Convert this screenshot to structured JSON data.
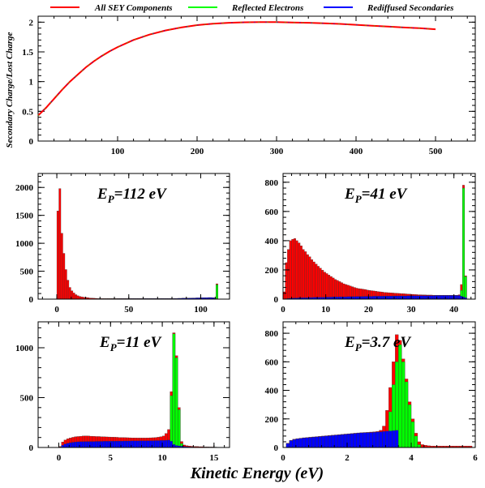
{
  "chart_data": [
    {
      "id": "top",
      "type": "line",
      "legend_position": "top",
      "xlim": [
        0,
        550
      ],
      "ylim": [
        0,
        2.1
      ],
      "x_ticks": [
        100,
        200,
        300,
        400,
        500
      ],
      "y_ticks": [
        0,
        0.5,
        1,
        1.5,
        2
      ],
      "x_tick_labels": [
        "100",
        "200",
        "300",
        "400",
        "500"
      ],
      "y_tick_labels": [
        "0",
        "0.5",
        "1",
        "1.5",
        "2"
      ],
      "ylabel": "Secondary Charge/Lost Charge",
      "series": [
        {
          "name": "All SEY Components",
          "color": "#ff0000"
        },
        {
          "name": "Reflected Electrons",
          "color": "#00ff00"
        },
        {
          "name": "Rediffused Secondaries",
          "color": "#0000ff"
        }
      ],
      "x": [
        0,
        10,
        20,
        30,
        40,
        50,
        60,
        70,
        80,
        90,
        100,
        120,
        140,
        160,
        180,
        200,
        220,
        240,
        260,
        280,
        300,
        320,
        340,
        360,
        380,
        400,
        420,
        440,
        460,
        480,
        500
      ],
      "values": [
        0.43,
        0.56,
        0.71,
        0.86,
        1.0,
        1.12,
        1.24,
        1.34,
        1.43,
        1.51,
        1.58,
        1.7,
        1.79,
        1.86,
        1.91,
        1.95,
        1.975,
        1.99,
        1.998,
        2.0,
        2.0,
        1.995,
        1.99,
        1.98,
        1.97,
        1.955,
        1.94,
        1.925,
        1.91,
        1.9,
        1.88
      ]
    },
    {
      "id": "p112",
      "type": "histogram",
      "annotation": {
        "prefix": "E",
        "sub": "P",
        "suffix": "=112 eV"
      },
      "xlim": [
        -13,
        120
      ],
      "ylim": [
        0,
        2250
      ],
      "x_ticks": [
        0,
        50,
        100
      ],
      "y_ticks": [
        0,
        500,
        1000,
        1500,
        2000
      ],
      "x_tick_labels": [
        "0",
        "50",
        "100"
      ],
      "y_tick_labels": [
        "0",
        "500",
        "1000",
        "1500",
        "2000"
      ],
      "bin_width": 1.4,
      "x_start": 0,
      "total": [
        1580,
        1980,
        1180,
        820,
        530,
        340,
        210,
        150,
        110,
        80,
        60,
        48,
        40,
        34,
        30,
        26,
        20,
        18,
        16,
        14,
        12,
        12,
        11,
        10,
        10,
        10,
        10,
        10,
        10,
        10,
        10,
        10,
        10,
        10,
        10,
        10,
        10,
        10,
        10,
        10,
        10,
        10,
        10,
        10,
        10,
        10,
        10,
        10,
        10,
        10,
        10,
        10,
        10,
        10,
        10,
        10,
        10,
        10,
        12,
        12,
        14,
        14,
        16,
        16,
        16,
        18,
        18,
        20,
        20,
        22,
        22,
        24,
        24,
        26,
        26,
        28,
        28,
        26,
        20,
        275
      ],
      "rediffused": [
        0,
        0,
        0,
        0,
        0,
        0,
        0,
        0,
        0,
        0,
        2,
        3,
        4,
        5,
        5,
        5,
        5,
        5,
        6,
        6,
        6,
        6,
        6,
        6,
        7,
        7,
        7,
        7,
        7,
        7,
        8,
        8,
        8,
        8,
        8,
        8,
        9,
        9,
        9,
        9,
        9,
        9,
        9,
        10,
        10,
        10,
        10,
        10,
        10,
        10,
        10,
        10,
        10,
        10,
        10,
        10,
        10,
        10,
        12,
        12,
        14,
        14,
        16,
        16,
        16,
        18,
        18,
        20,
        20,
        22,
        22,
        24,
        24,
        26,
        26,
        28,
        28,
        26,
        20,
        6
      ],
      "reflected": [
        0,
        0,
        0,
        0,
        0,
        0,
        0,
        0,
        0,
        0,
        0,
        0,
        0,
        0,
        0,
        0,
        0,
        0,
        0,
        0,
        0,
        0,
        0,
        0,
        0,
        0,
        0,
        0,
        0,
        0,
        0,
        0,
        0,
        0,
        0,
        0,
        0,
        0,
        0,
        0,
        0,
        0,
        0,
        0,
        0,
        0,
        0,
        0,
        0,
        0,
        0,
        0,
        0,
        0,
        0,
        0,
        0,
        0,
        0,
        0,
        0,
        0,
        0,
        0,
        0,
        0,
        0,
        0,
        0,
        0,
        0,
        0,
        0,
        0,
        0,
        0,
        0,
        0,
        0,
        260
      ]
    },
    {
      "id": "p41",
      "type": "histogram",
      "annotation": {
        "prefix": "E",
        "sub": "P",
        "suffix": "=41 eV"
      },
      "xlim": [
        0,
        45
      ],
      "ylim": [
        0,
        860
      ],
      "x_ticks": [
        0,
        10,
        20,
        30,
        40
      ],
      "y_ticks": [
        0,
        200,
        400,
        600,
        800
      ],
      "x_tick_labels": [
        "0",
        "10",
        "20",
        "30",
        "40"
      ],
      "y_tick_labels": [
        "0",
        "200",
        "400",
        "600",
        "800"
      ],
      "bin_width": 0.5,
      "x_start": 0,
      "total": [
        50,
        250,
        340,
        400,
        410,
        415,
        400,
        385,
        365,
        340,
        325,
        305,
        290,
        270,
        255,
        240,
        225,
        212,
        198,
        185,
        175,
        165,
        155,
        145,
        135,
        128,
        120,
        113,
        105,
        100,
        95,
        90,
        85,
        80,
        75,
        72,
        70,
        68,
        66,
        62,
        60,
        58,
        56,
        54,
        52,
        50,
        48,
        46,
        45,
        44,
        43,
        42,
        41,
        40,
        39,
        38,
        37,
        36,
        35,
        34,
        33,
        32,
        31,
        30,
        30,
        29,
        29,
        28,
        28,
        28,
        27,
        27,
        27,
        27,
        27,
        27,
        27,
        27,
        27,
        27,
        27,
        27,
        30,
        100,
        780,
        160
      ],
      "rediffused": [
        0,
        3,
        5,
        6,
        7,
        8,
        8,
        9,
        9,
        10,
        10,
        10,
        11,
        11,
        12,
        12,
        12,
        13,
        13,
        13,
        14,
        14,
        14,
        15,
        15,
        15,
        16,
        16,
        16,
        16,
        17,
        17,
        17,
        17,
        18,
        18,
        18,
        18,
        19,
        19,
        19,
        19,
        20,
        20,
        20,
        20,
        20,
        21,
        21,
        21,
        21,
        21,
        22,
        22,
        22,
        22,
        22,
        22,
        23,
        23,
        23,
        23,
        23,
        23,
        24,
        24,
        24,
        24,
        24,
        24,
        24,
        25,
        25,
        25,
        25,
        25,
        25,
        25,
        25,
        25,
        25,
        25,
        25,
        20,
        15,
        10
      ],
      "reflected": [
        0,
        0,
        0,
        0,
        0,
        0,
        0,
        0,
        0,
        0,
        0,
        0,
        0,
        0,
        0,
        0,
        0,
        0,
        0,
        0,
        0,
        0,
        0,
        0,
        0,
        0,
        0,
        0,
        0,
        0,
        0,
        0,
        0,
        0,
        0,
        0,
        0,
        0,
        0,
        0,
        0,
        0,
        0,
        0,
        0,
        0,
        0,
        0,
        0,
        0,
        0,
        0,
        0,
        0,
        0,
        0,
        0,
        0,
        0,
        0,
        0,
        0,
        0,
        0,
        0,
        0,
        0,
        0,
        0,
        0,
        0,
        0,
        0,
        0,
        0,
        0,
        0,
        0,
        0,
        0,
        0,
        0,
        0,
        60,
        760,
        155
      ]
    },
    {
      "id": "p11",
      "type": "histogram",
      "annotation": {
        "prefix": "E",
        "sub": "P",
        "suffix": "=11 eV"
      },
      "xlim": [
        -2,
        16.5
      ],
      "ylim": [
        0,
        1260
      ],
      "x_ticks": [
        0,
        5,
        10,
        15
      ],
      "y_ticks": [
        0,
        500,
        1000
      ],
      "x_tick_labels": [
        "0",
        "5",
        "10",
        "15"
      ],
      "y_tick_labels": [
        "0",
        "500",
        "1000"
      ],
      "bin_width": 0.25,
      "x_start": 0,
      "total": [
        10,
        55,
        75,
        88,
        95,
        102,
        108,
        110,
        112,
        115,
        116,
        115,
        113,
        112,
        110,
        110,
        108,
        107,
        106,
        105,
        104,
        103,
        102,
        100,
        100,
        99,
        98,
        97,
        96,
        96,
        95,
        95,
        95,
        95,
        96,
        97,
        98,
        100,
        103,
        108,
        115,
        140,
        180,
        560,
        1150,
        920,
        400,
        60,
        25,
        18,
        15,
        12,
        10,
        10,
        8,
        8,
        6,
        6,
        5,
        5,
        4,
        3
      ],
      "rediffused": [
        5,
        22,
        35,
        42,
        48,
        52,
        55,
        57,
        58,
        59,
        60,
        60,
        60,
        60,
        61,
        61,
        61,
        62,
        62,
        62,
        63,
        63,
        64,
        64,
        64,
        65,
        65,
        65,
        66,
        66,
        66,
        67,
        67,
        67,
        68,
        68,
        68,
        69,
        69,
        70,
        70,
        72,
        74,
        62,
        30,
        20,
        16,
        13,
        10,
        8,
        6,
        5,
        4,
        4,
        3,
        3,
        3,
        3,
        2,
        2,
        2,
        1
      ],
      "reflected": [
        0,
        0,
        0,
        0,
        0,
        0,
        0,
        0,
        0,
        0,
        0,
        0,
        0,
        0,
        0,
        0,
        0,
        0,
        0,
        0,
        0,
        0,
        0,
        0,
        0,
        0,
        0,
        0,
        0,
        0,
        0,
        0,
        0,
        0,
        0,
        0,
        0,
        0,
        0,
        0,
        0,
        0,
        0,
        520,
        1140,
        900,
        380,
        40,
        0,
        0,
        0,
        0,
        0,
        0,
        0,
        0,
        0,
        0,
        0,
        0,
        0,
        0
      ]
    },
    {
      "id": "p3_7",
      "type": "histogram",
      "annotation": {
        "prefix": "E",
        "sub": "P",
        "suffix": "=3.7 eV"
      },
      "xlim": [
        0,
        6
      ],
      "ylim": [
        0,
        880
      ],
      "x_ticks": [
        0,
        2,
        4,
        6
      ],
      "y_ticks": [
        0,
        200,
        400,
        600,
        800
      ],
      "x_tick_labels": [
        "0",
        "2",
        "4",
        "6"
      ],
      "y_tick_labels": [
        "0",
        "200",
        "400",
        "600",
        "800"
      ],
      "bin_width": 0.1,
      "x_start": 0.1,
      "total": [
        30,
        50,
        58,
        62,
        65,
        68,
        70,
        72,
        74,
        76,
        78,
        80,
        82,
        84,
        86,
        88,
        90,
        92,
        94,
        96,
        98,
        100,
        102,
        104,
        105,
        106,
        108,
        110,
        112,
        120,
        150,
        260,
        420,
        600,
        790,
        750,
        620,
        480,
        320,
        200,
        100,
        40,
        20,
        15,
        12,
        10,
        10,
        10,
        10,
        10,
        10,
        10,
        10,
        10,
        10,
        10,
        10,
        10
      ],
      "rediffused": [
        28,
        48,
        56,
        60,
        63,
        66,
        68,
        70,
        72,
        74,
        76,
        78,
        80,
        82,
        84,
        86,
        88,
        90,
        92,
        94,
        96,
        98,
        100,
        102,
        103,
        104,
        105,
        106,
        108,
        110,
        112,
        114,
        116,
        118,
        120,
        0,
        0,
        0,
        0,
        0,
        0,
        0,
        0,
        0,
        0,
        0,
        0,
        0,
        0,
        0,
        0,
        0,
        0,
        0,
        0,
        0,
        0,
        0
      ],
      "reflected": [
        0,
        0,
        0,
        0,
        0,
        0,
        0,
        0,
        0,
        0,
        0,
        0,
        0,
        0,
        0,
        0,
        0,
        0,
        0,
        0,
        0,
        0,
        0,
        0,
        0,
        0,
        0,
        0,
        0,
        0,
        20,
        100,
        250,
        440,
        600,
        720,
        600,
        460,
        300,
        180,
        80,
        20,
        0,
        0,
        0,
        0,
        0,
        0,
        0,
        0,
        0,
        0,
        0,
        0,
        0,
        0,
        0,
        0
      ]
    }
  ],
  "shared_xlabel": "Kinetic Energy (eV)",
  "colors": {
    "total": "#ff0000",
    "reflected": "#00ff00",
    "rediffused": "#0000ff"
  }
}
